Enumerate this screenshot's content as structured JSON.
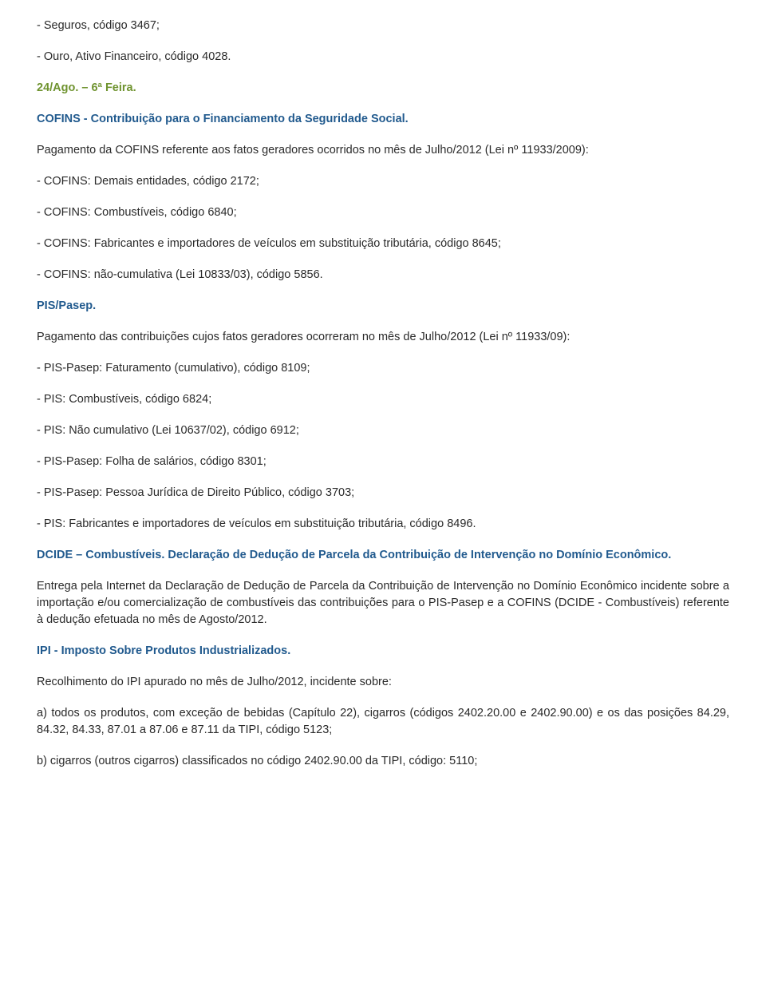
{
  "colors": {
    "text": "#2a2a2a",
    "green": "#6f932f",
    "blue": "#215a8e",
    "background": "#ffffff"
  },
  "typography": {
    "family": "Verdana, Geneva, sans-serif",
    "size_pt": 11,
    "line_height": 1.45
  },
  "paragraphs": [
    {
      "cls": "",
      "text": "- Seguros, código 3467;"
    },
    {
      "cls": "",
      "text": "- Ouro, Ativo Financeiro, código 4028."
    },
    {
      "cls": "date-heading",
      "text": "24/Ago. – 6ª Feira."
    },
    {
      "cls": "section-heading",
      "text": "COFINS - Contribuição para o Financiamento da Seguridade Social."
    },
    {
      "cls": "",
      "text": "Pagamento da COFINS referente aos fatos geradores ocorridos no mês de Julho/2012 (Lei nº 11933/2009):"
    },
    {
      "cls": "",
      "text": "- COFINS: Demais entidades, código 2172;"
    },
    {
      "cls": "",
      "text": "- COFINS: Combustíveis, código 6840;"
    },
    {
      "cls": "",
      "text": "- COFINS: Fabricantes e importadores de veículos em substituição tributária, código 8645;"
    },
    {
      "cls": "",
      "text": "- COFINS: não-cumulativa (Lei 10833/03), código 5856."
    },
    {
      "cls": "section-heading",
      "text": "PIS/Pasep."
    },
    {
      "cls": "",
      "text": "Pagamento das contribuições cujos fatos geradores ocorreram no mês de Julho/2012 (Lei nº 11933/09):"
    },
    {
      "cls": "",
      "text": "- PIS-Pasep: Faturamento (cumulativo), código 8109;"
    },
    {
      "cls": "",
      "text": "- PIS: Combustíveis, código 6824;"
    },
    {
      "cls": "",
      "text": "- PIS: Não cumulativo (Lei 10637/02), código 6912;"
    },
    {
      "cls": "",
      "text": "- PIS-Pasep: Folha de salários, código 8301;"
    },
    {
      "cls": "",
      "text": "- PIS-Pasep: Pessoa Jurídica de Direito Público, código 3703;"
    },
    {
      "cls": "",
      "text": "- PIS: Fabricantes e importadores de veículos em substituição tributária, código 8496."
    },
    {
      "cls": "section-heading",
      "text": "DCIDE – Combustíveis. Declaração de Dedução de Parcela da Contribuição de Intervenção no Domínio Econômico."
    },
    {
      "cls": "",
      "text": "Entrega pela Internet da Declaração de Dedução de Parcela da Contribuição de Intervenção no Domínio Econômico incidente sobre a importação e/ou comercialização de combustíveis das contribuições para o PIS-Pasep e a COFINS (DCIDE - Combustíveis) referente à dedução efetuada no mês de Agosto/2012."
    },
    {
      "cls": "section-heading",
      "text": "IPI - Imposto Sobre Produtos Industrializados."
    },
    {
      "cls": "",
      "text": "Recolhimento do IPI apurado no mês de Julho/2012, incidente sobre:"
    },
    {
      "cls": "",
      "text": "a) todos os produtos, com exceção de bebidas (Capítulo 22), cigarros (códigos 2402.20.00 e 2402.90.00) e os das posições 84.29, 84.32, 84.33, 87.01 a 87.06 e 87.11 da TIPI, código 5123;"
    },
    {
      "cls": "",
      "text": "b) cigarros (outros cigarros) classificados no código 2402.90.00 da TIPI, código: 5110;"
    }
  ]
}
